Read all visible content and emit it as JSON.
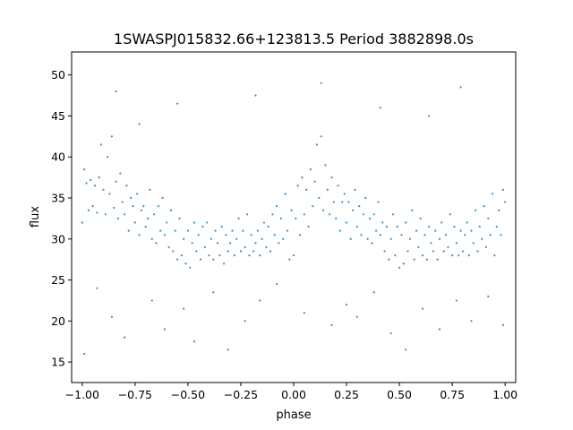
{
  "chart_data": {
    "type": "scatter",
    "title": "1SWASPJ015832.66+123813.5 Period 3882898.0s",
    "xlabel": "phase",
    "ylabel": "flux",
    "xlim": [
      -1.05,
      1.05
    ],
    "ylim": [
      12.5,
      52.8
    ],
    "x_ticks": [
      -1.0,
      -0.75,
      -0.5,
      -0.25,
      0.0,
      0.25,
      0.5,
      0.75,
      1.0
    ],
    "x_tick_labels": [
      "−1.00",
      "−0.75",
      "−0.50",
      "−0.25",
      "0.00",
      "0.25",
      "0.50",
      "0.75",
      "1.00"
    ],
    "y_ticks": [
      15,
      20,
      25,
      30,
      35,
      40,
      45,
      50
    ],
    "y_tick_labels": [
      "15",
      "20",
      "25",
      "30",
      "35",
      "40",
      "45",
      "50"
    ],
    "grid": false,
    "marker_color": "#1f77b4",
    "series": [
      {
        "points": [
          [
            -1.0,
            32.0
          ],
          [
            -0.99,
            38.5
          ],
          [
            -0.98,
            36.8
          ],
          [
            -0.97,
            33.5
          ],
          [
            -0.96,
            37.2
          ],
          [
            -0.95,
            34.0
          ],
          [
            -0.94,
            36.5
          ],
          [
            -0.93,
            33.2
          ],
          [
            -0.92,
            37.5
          ],
          [
            -0.91,
            41.5
          ],
          [
            -0.9,
            36.0
          ],
          [
            -0.89,
            33.0
          ],
          [
            -0.88,
            40.0
          ],
          [
            -0.87,
            35.5
          ],
          [
            -0.86,
            42.5
          ],
          [
            -0.85,
            33.8
          ],
          [
            -0.84,
            37.0
          ],
          [
            -0.83,
            32.5
          ],
          [
            -0.82,
            38.0
          ],
          [
            -0.81,
            34.5
          ],
          [
            -0.8,
            33.0
          ],
          [
            -0.79,
            36.5
          ],
          [
            -0.78,
            31.0
          ],
          [
            -0.77,
            35.0
          ],
          [
            -0.76,
            34.0
          ],
          [
            -0.75,
            32.0
          ],
          [
            -0.74,
            35.5
          ],
          [
            -0.73,
            30.5
          ],
          [
            -0.72,
            33.5
          ],
          [
            -0.71,
            34.0
          ],
          [
            -0.7,
            31.5
          ],
          [
            -0.69,
            32.5
          ],
          [
            -0.68,
            36.0
          ],
          [
            -0.67,
            30.0
          ],
          [
            -0.66,
            33.0
          ],
          [
            -0.65,
            29.5
          ],
          [
            -0.64,
            34.0
          ],
          [
            -0.63,
            31.0
          ],
          [
            -0.62,
            35.0
          ],
          [
            -0.61,
            30.5
          ],
          [
            -0.6,
            32.0
          ],
          [
            -0.59,
            29.0
          ],
          [
            -0.58,
            33.5
          ],
          [
            -0.57,
            28.5
          ],
          [
            -0.56,
            31.0
          ],
          [
            -0.55,
            27.5
          ],
          [
            -0.54,
            32.5
          ],
          [
            -0.53,
            28.0
          ],
          [
            -0.52,
            30.0
          ],
          [
            -0.51,
            27.0
          ],
          [
            -0.5,
            31.0
          ],
          [
            -0.49,
            26.5
          ],
          [
            -0.48,
            29.5
          ],
          [
            -0.47,
            32.0
          ],
          [
            -0.46,
            28.5
          ],
          [
            -0.45,
            30.5
          ],
          [
            -0.44,
            27.5
          ],
          [
            -0.43,
            31.5
          ],
          [
            -0.42,
            29.0
          ],
          [
            -0.41,
            32.0
          ],
          [
            -0.4,
            28.0
          ],
          [
            -0.39,
            30.0
          ],
          [
            -0.38,
            27.5
          ],
          [
            -0.37,
            31.0
          ],
          [
            -0.36,
            29.5
          ],
          [
            -0.35,
            28.0
          ],
          [
            -0.34,
            31.5
          ],
          [
            -0.33,
            27.0
          ],
          [
            -0.32,
            30.5
          ],
          [
            -0.31,
            28.5
          ],
          [
            -0.3,
            29.5
          ],
          [
            -0.29,
            31.0
          ],
          [
            -0.28,
            28.0
          ],
          [
            -0.27,
            30.0
          ],
          [
            -0.26,
            32.5
          ],
          [
            -0.25,
            28.5
          ],
          [
            -0.24,
            31.0
          ],
          [
            -0.23,
            29.0
          ],
          [
            -0.22,
            33.0
          ],
          [
            -0.21,
            28.0
          ],
          [
            -0.2,
            30.5
          ],
          [
            -0.19,
            28.5
          ],
          [
            -0.18,
            29.5
          ],
          [
            -0.17,
            31.0
          ],
          [
            -0.16,
            28.0
          ],
          [
            -0.15,
            30.0
          ],
          [
            -0.14,
            32.0
          ],
          [
            -0.13,
            29.0
          ],
          [
            -0.12,
            31.5
          ],
          [
            -0.11,
            28.5
          ],
          [
            -0.1,
            33.0
          ],
          [
            -0.09,
            30.5
          ],
          [
            -0.08,
            34.0
          ],
          [
            -0.07,
            29.5
          ],
          [
            -0.06,
            32.5
          ],
          [
            -0.05,
            30.0
          ],
          [
            -0.04,
            35.5
          ],
          [
            -0.03,
            31.0
          ],
          [
            -0.02,
            27.5
          ],
          [
            -0.01,
            33.5
          ],
          [
            0.0,
            28.0
          ],
          [
            0.01,
            32.5
          ],
          [
            0.02,
            36.5
          ],
          [
            0.03,
            30.5
          ],
          [
            0.04,
            37.5
          ],
          [
            0.05,
            33.0
          ],
          [
            0.06,
            36.0
          ],
          [
            0.07,
            31.5
          ],
          [
            0.08,
            38.5
          ],
          [
            0.09,
            34.0
          ],
          [
            0.1,
            37.0
          ],
          [
            0.11,
            41.5
          ],
          [
            0.12,
            35.0
          ],
          [
            0.13,
            42.5
          ],
          [
            0.14,
            33.5
          ],
          [
            0.15,
            39.0
          ],
          [
            0.16,
            36.0
          ],
          [
            0.17,
            33.0
          ],
          [
            0.18,
            37.5
          ],
          [
            0.19,
            34.5
          ],
          [
            0.2,
            32.5
          ],
          [
            0.21,
            36.5
          ],
          [
            0.22,
            31.0
          ],
          [
            0.23,
            34.5
          ],
          [
            0.24,
            35.5
          ],
          [
            0.25,
            32.0
          ],
          [
            0.26,
            34.5
          ],
          [
            0.27,
            30.0
          ],
          [
            0.28,
            33.5
          ],
          [
            0.29,
            36.0
          ],
          [
            0.3,
            31.5
          ],
          [
            0.31,
            34.0
          ],
          [
            0.32,
            30.5
          ],
          [
            0.33,
            33.0
          ],
          [
            0.34,
            35.0
          ],
          [
            0.35,
            30.0
          ],
          [
            0.36,
            32.5
          ],
          [
            0.37,
            29.5
          ],
          [
            0.38,
            33.0
          ],
          [
            0.39,
            31.0
          ],
          [
            0.4,
            34.5
          ],
          [
            0.41,
            30.5
          ],
          [
            0.42,
            32.0
          ],
          [
            0.43,
            28.5
          ],
          [
            0.44,
            31.5
          ],
          [
            0.45,
            27.5
          ],
          [
            0.46,
            30.0
          ],
          [
            0.47,
            33.0
          ],
          [
            0.48,
            28.0
          ],
          [
            0.49,
            31.5
          ],
          [
            0.5,
            26.5
          ],
          [
            0.51,
            30.5
          ],
          [
            0.52,
            27.0
          ],
          [
            0.53,
            32.0
          ],
          [
            0.54,
            28.5
          ],
          [
            0.55,
            30.0
          ],
          [
            0.56,
            33.5
          ],
          [
            0.57,
            27.5
          ],
          [
            0.58,
            31.0
          ],
          [
            0.59,
            29.0
          ],
          [
            0.6,
            32.5
          ],
          [
            0.61,
            28.0
          ],
          [
            0.62,
            30.5
          ],
          [
            0.63,
            27.5
          ],
          [
            0.64,
            31.5
          ],
          [
            0.65,
            29.5
          ],
          [
            0.66,
            28.5
          ],
          [
            0.67,
            31.0
          ],
          [
            0.68,
            27.5
          ],
          [
            0.69,
            30.0
          ],
          [
            0.7,
            32.0
          ],
          [
            0.71,
            28.5
          ],
          [
            0.72,
            30.5
          ],
          [
            0.73,
            29.0
          ],
          [
            0.74,
            33.0
          ],
          [
            0.75,
            28.0
          ],
          [
            0.76,
            31.5
          ],
          [
            0.77,
            29.5
          ],
          [
            0.78,
            28.0
          ],
          [
            0.79,
            31.0
          ],
          [
            0.8,
            28.5
          ],
          [
            0.81,
            30.5
          ],
          [
            0.82,
            32.0
          ],
          [
            0.83,
            28.0
          ],
          [
            0.84,
            31.0
          ],
          [
            0.85,
            29.5
          ],
          [
            0.86,
            33.5
          ],
          [
            0.87,
            28.5
          ],
          [
            0.88,
            31.5
          ],
          [
            0.89,
            30.0
          ],
          [
            0.9,
            34.0
          ],
          [
            0.91,
            29.0
          ],
          [
            0.92,
            32.5
          ],
          [
            0.93,
            30.5
          ],
          [
            0.94,
            35.5
          ],
          [
            0.95,
            28.0
          ],
          [
            0.96,
            31.5
          ],
          [
            0.97,
            33.5
          ],
          [
            0.98,
            30.5
          ],
          [
            0.99,
            36.0
          ],
          [
            1.0,
            34.5
          ],
          [
            -0.99,
            16.0
          ],
          [
            -0.93,
            24.0
          ],
          [
            -0.86,
            20.5
          ],
          [
            -0.8,
            18.0
          ],
          [
            -0.67,
            22.5
          ],
          [
            -0.61,
            19.0
          ],
          [
            -0.52,
            21.5
          ],
          [
            -0.47,
            17.5
          ],
          [
            -0.38,
            23.5
          ],
          [
            -0.31,
            16.5
          ],
          [
            -0.23,
            20.0
          ],
          [
            -0.16,
            22.5
          ],
          [
            -0.08,
            24.5
          ],
          [
            0.05,
            21.0
          ],
          [
            0.18,
            19.5
          ],
          [
            0.25,
            22.0
          ],
          [
            0.3,
            20.5
          ],
          [
            0.38,
            23.5
          ],
          [
            0.46,
            18.5
          ],
          [
            0.53,
            16.5
          ],
          [
            0.61,
            21.5
          ],
          [
            0.69,
            19.0
          ],
          [
            0.77,
            22.5
          ],
          [
            0.84,
            20.0
          ],
          [
            0.92,
            23.0
          ],
          [
            0.99,
            19.5
          ],
          [
            -0.84,
            48.0
          ],
          [
            -0.55,
            46.5
          ],
          [
            -0.18,
            47.5
          ],
          [
            0.13,
            49.0
          ],
          [
            0.41,
            46.0
          ],
          [
            0.79,
            48.5
          ],
          [
            -0.73,
            44.0
          ],
          [
            0.64,
            45.0
          ]
        ]
      }
    ]
  }
}
